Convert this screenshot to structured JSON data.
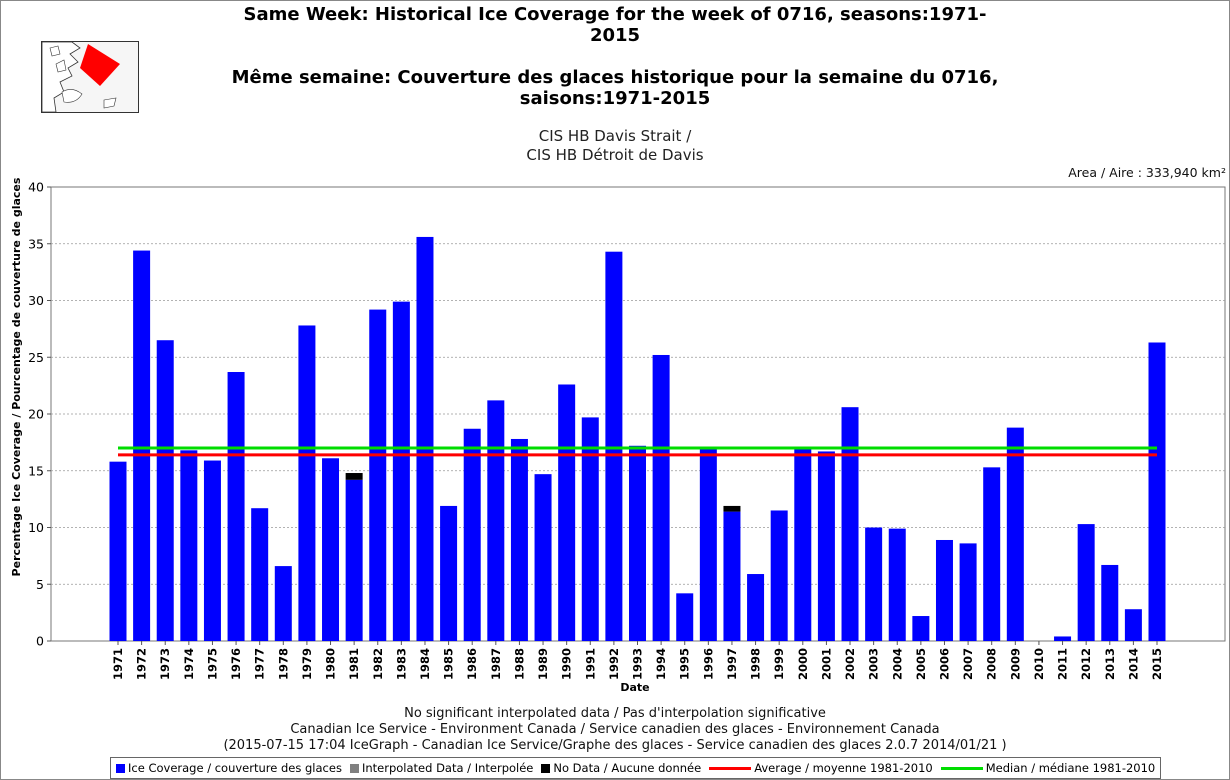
{
  "title_en": "Same Week: Historical Ice Coverage for the week of 0716, seasons:1971-2015",
  "title_fr": "Même semaine: Couverture des glaces historique pour la semaine du 0716, saisons:1971-2015",
  "subtitle_line1": "CIS HB Davis Strait /",
  "subtitle_line2": "CIS HB Détroit de Davis",
  "area_text": "Area / Aire : 333,940 km²",
  "colors": {
    "ice": "#0000ff",
    "interpolated": "#808080",
    "nodata": "#000000",
    "average": "#ff0000",
    "median": "#00dd00",
    "map_region": "#ff0000"
  },
  "footer": {
    "line1": "No significant interpolated data / Pas d'interpolation significative",
    "line2": "Canadian Ice Service - Environment Canada / Service canadien des glaces - Environnement Canada",
    "line3": "(2015-07-15 17:04 IceGraph - Canadian Ice Service/Graphe des glaces - Service canadien des glaces 2.0.7 2014/01/21 )"
  },
  "legend": {
    "ice": "Ice Coverage / couverture des glaces",
    "interpolated": "Interpolated Data / Interpolée",
    "nodata": "No Data / Aucune donnée",
    "average": "Average / moyenne 1981-2010",
    "median": "Median / médiane 1981-2010"
  },
  "chart_data": {
    "type": "bar",
    "title": "Same Week: Historical Ice Coverage for the week of 0716, seasons:1971-2015",
    "xlabel": "Date",
    "ylabel": "Percentage Ice Coverage / Pourcentage de couverture de glaces",
    "ylim": [
      0,
      40
    ],
    "yticks": [
      0,
      5,
      10,
      15,
      20,
      25,
      30,
      35,
      40
    ],
    "grid": true,
    "legend_position": "bottom",
    "categories": [
      "1971",
      "1972",
      "1973",
      "1974",
      "1975",
      "1976",
      "1977",
      "1978",
      "1979",
      "1980",
      "1981",
      "1982",
      "1983",
      "1984",
      "1985",
      "1986",
      "1987",
      "1988",
      "1989",
      "1990",
      "1991",
      "1992",
      "1993",
      "1994",
      "1995",
      "1996",
      "1997",
      "1998",
      "1999",
      "2000",
      "2001",
      "2002",
      "2003",
      "2004",
      "2005",
      "2006",
      "2007",
      "2008",
      "2009",
      "2010",
      "2011",
      "2012",
      "2013",
      "2014",
      "2015"
    ],
    "series": [
      {
        "name": "Ice Coverage / couverture des glaces",
        "values": [
          15.8,
          34.4,
          26.5,
          16.8,
          15.9,
          23.7,
          11.7,
          6.6,
          27.8,
          16.1,
          14.2,
          29.2,
          29.9,
          35.6,
          11.9,
          18.7,
          21.2,
          17.8,
          14.7,
          22.6,
          19.7,
          34.3,
          17.2,
          25.2,
          4.2,
          17.1,
          11.4,
          5.9,
          11.5,
          17.1,
          16.7,
          20.6,
          10.0,
          9.9,
          2.2,
          8.9,
          8.6,
          15.3,
          18.8,
          0.0,
          0.4,
          10.3,
          6.7,
          2.8,
          26.3
        ]
      },
      {
        "name": "No Data / Aucune donnée",
        "values": [
          0,
          0,
          0,
          0,
          0,
          0,
          0,
          0,
          0,
          0,
          0.6,
          0,
          0,
          0,
          0,
          0,
          0,
          0,
          0,
          0,
          0,
          0,
          0,
          0,
          0,
          0,
          0.5,
          0,
          0,
          0,
          0,
          0,
          0,
          0,
          0,
          0,
          0,
          0,
          0,
          0,
          0,
          0,
          0,
          0,
          0
        ]
      }
    ],
    "average_1981_2010": 16.4,
    "median_1981_2010": 17.0
  }
}
